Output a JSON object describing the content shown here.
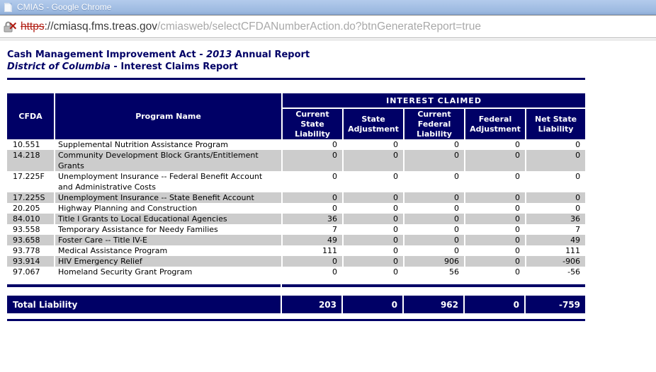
{
  "window": {
    "title": "CMIAS - Google Chrome"
  },
  "address_bar": {
    "scheme": "https",
    "host": "://cmiasq.fms.treas.gov",
    "path": "/cmiasweb/selectCFDANumberAction.do?btnGenerateReport=true"
  },
  "page": {
    "title_line1_pre": "Cash Management Improvement Act - ",
    "title_line1_italic": "2013",
    "title_line1_post": " Annual Report",
    "title_line2_italic": "District of Columbia",
    "title_line2_post": " - Interest Claims Report"
  },
  "table": {
    "headers": {
      "cfda": "CFDA",
      "program": "Program Name",
      "group": "INTEREST CLAIMED",
      "cols": [
        "Current State Liability",
        "State Adjustment",
        "Current Federal Liability",
        "Federal Adjustment",
        "Net State Liability"
      ]
    },
    "rows": [
      {
        "cfda": "10.551",
        "program": "Supplemental Nutrition Assistance Program",
        "values": [
          "0",
          "0",
          "0",
          "0",
          "0"
        ]
      },
      {
        "cfda": "14.218",
        "program": "Community Development Block Grants/Entitlement\nGrants",
        "values": [
          "0",
          "0",
          "0",
          "0",
          "0"
        ]
      },
      {
        "cfda": "17.225F",
        "program": "Unemployment Insurance -- Federal Benefit Account\nand Administrative Costs",
        "values": [
          "0",
          "0",
          "0",
          "0",
          "0"
        ]
      },
      {
        "cfda": "17.225S",
        "program": "Unemployment Insurance -- State Benefit Account",
        "values": [
          "0",
          "0",
          "0",
          "0",
          "0"
        ]
      },
      {
        "cfda": "20.205",
        "program": "Highway Planning and Construction",
        "values": [
          "0",
          "0",
          "0",
          "0",
          "0"
        ]
      },
      {
        "cfda": "84.010",
        "program": "Title I Grants to Local Educational Agencies",
        "values": [
          "36",
          "0",
          "0",
          "0",
          "36"
        ]
      },
      {
        "cfda": "93.558",
        "program": "Temporary Assistance for Needy Families",
        "values": [
          "7",
          "0",
          "0",
          "0",
          "7"
        ]
      },
      {
        "cfda": "93.658",
        "program": "Foster Care -- Title IV-E",
        "values": [
          "49",
          "0",
          "0",
          "0",
          "49"
        ]
      },
      {
        "cfda": "93.778",
        "program": "Medical Assistance Program",
        "values": [
          "111",
          "0",
          "0",
          "0",
          "111"
        ]
      },
      {
        "cfda": "93.914",
        "program": "HIV Emergency Relief",
        "values": [
          "0",
          "0",
          "906",
          "0",
          "-906"
        ]
      },
      {
        "cfda": "97.067",
        "program": "Homeland Security Grant Program",
        "values": [
          "0",
          "0",
          "56",
          "0",
          "-56"
        ]
      }
    ],
    "totals": {
      "label": "Total Liability",
      "values": [
        "203",
        "0",
        "962",
        "0",
        "-759"
      ]
    }
  },
  "colors": {
    "navy": "#000066",
    "stripe_gray": "#cccccc",
    "broken_https_red": "#b01c12",
    "titlebar_blue": "#9cb9e0"
  }
}
